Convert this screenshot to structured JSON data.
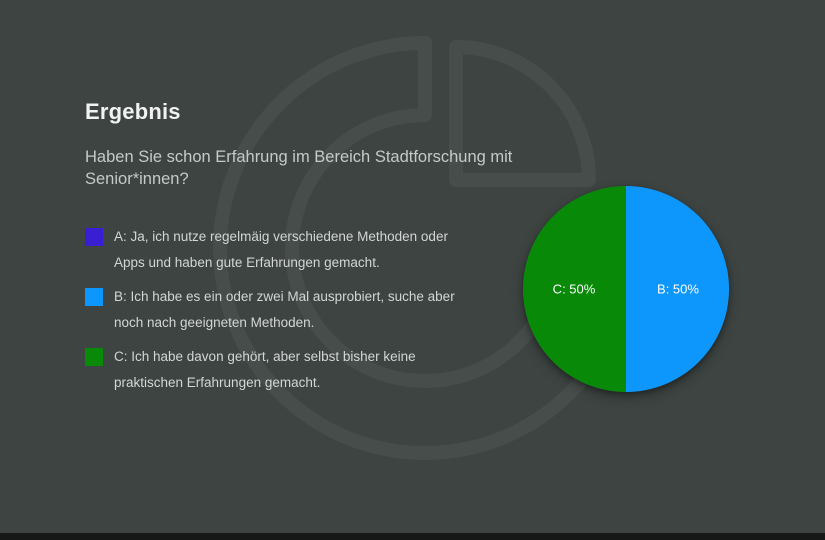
{
  "window": {
    "background": "#3d4442",
    "bottom_bar_color": "#151817"
  },
  "header": {
    "title": "Ergebnis",
    "question": "Haben Sie schon Erfahrung im Bereich Stadtforschung mit Senior*innen?"
  },
  "legend": {
    "items": [
      {
        "id": "A",
        "color": "#3a1ed2",
        "lines": [
          "A: Ja, ich nutze regelmäig verschiedene Methoden oder",
          "Apps und haben gute Erfahrungen gemacht."
        ]
      },
      {
        "id": "B",
        "color": "#0d97fc",
        "lines": [
          "B: Ich habe es ein oder zwei Mal ausprobiert, suche aber",
          "noch nach geeigneten Methoden."
        ]
      },
      {
        "id": "C",
        "color": "#088a08",
        "lines": [
          "C: Ich habe davon gehört, aber selbst bisher keine",
          "praktischen Erfahrungen gemacht."
        ]
      }
    ]
  },
  "chart_data": {
    "type": "pie",
    "title": "",
    "legend_position": "left",
    "slices": [
      {
        "name": "B",
        "label": "B: 50%",
        "value": 50,
        "color": "#0d97fc",
        "start_deg": 0,
        "end_deg": 180
      },
      {
        "name": "C",
        "label": "C: 50%",
        "value": 50,
        "color": "#088a08",
        "start_deg": 180,
        "end_deg": 360
      }
    ],
    "label_color": "#ffffff"
  },
  "watermark": {
    "icon": "particify-pie-logo-watermark",
    "color": "rgba(255,255,255,0.05)"
  }
}
